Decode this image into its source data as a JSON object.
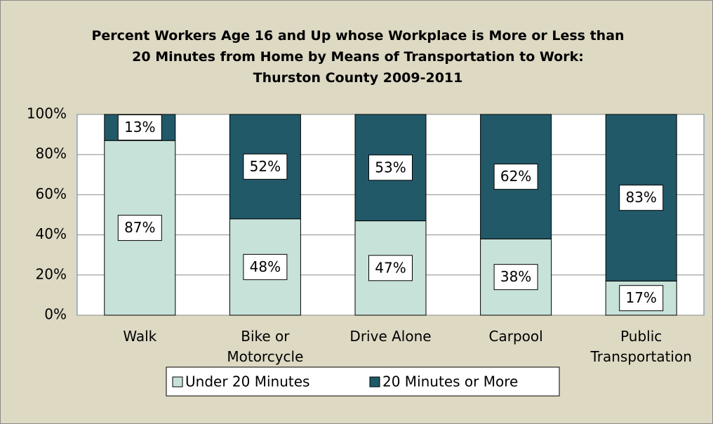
{
  "chart_data": {
    "type": "stacked_bar",
    "title": "Percent  Workers  Age 16 and Up whose Workplace is More or Less than\n20 Minutes from Home by Means of Transportation to Work:\nThurston County 2009-2011",
    "categories": [
      "Walk",
      "Bike or\nMotorcycle",
      "Drive Alone",
      "Carpool",
      "Public\nTransportation"
    ],
    "series": [
      {
        "name": "Under 20 Minutes",
        "color": "#c7e2d9",
        "values": [
          87,
          48,
          47,
          38,
          17
        ],
        "value_labels": [
          "87%",
          "48%",
          "47%",
          "38%",
          "17%"
        ]
      },
      {
        "name": "20 Minutes or More",
        "color": "#215968",
        "values": [
          13,
          52,
          53,
          62,
          83
        ],
        "value_labels": [
          "13%",
          "52%",
          "53%",
          "62%",
          "83%"
        ]
      }
    ],
    "ylim": [
      0,
      100
    ],
    "yticks": [
      {
        "value": 0,
        "label": "0%"
      },
      {
        "value": 20,
        "label": "20%"
      },
      {
        "value": 40,
        "label": "40%"
      },
      {
        "value": 60,
        "label": "60%"
      },
      {
        "value": 80,
        "label": "80%"
      },
      {
        "value": 100,
        "label": "100%"
      }
    ],
    "grid": true,
    "legend": "bottom"
  }
}
